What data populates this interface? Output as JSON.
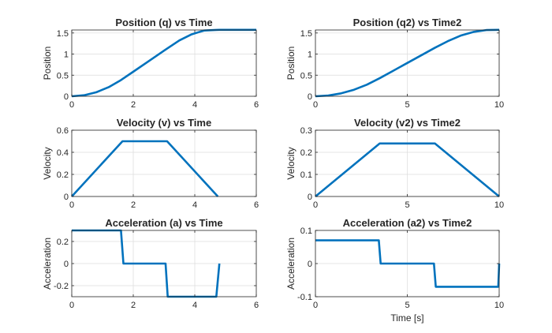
{
  "chart_data": [
    {
      "type": "line",
      "title": "Position (q) vs Time",
      "xlabel": "",
      "ylabel": "Position",
      "xlim": [
        0,
        6
      ],
      "ylim": [
        0,
        1.571
      ],
      "xticks": [
        0,
        2,
        4,
        6
      ],
      "yticks": [
        0,
        0.5,
        1,
        1.5
      ],
      "xtick_labels": [
        "0",
        "2",
        "4",
        "6"
      ],
      "ytick_labels": [
        "0",
        "0.5",
        "1",
        "1.5"
      ],
      "grid": true,
      "color": "#0072bd",
      "series": [
        {
          "x": [
            0,
            0.4,
            0.8,
            1.2,
            1.6,
            2.0,
            2.5,
            3.0,
            3.1,
            3.5,
            3.9,
            4.3,
            4.7,
            4.8,
            6.0
          ],
          "y": [
            0,
            0.024,
            0.096,
            0.216,
            0.384,
            0.582,
            0.832,
            1.082,
            1.131,
            1.325,
            1.469,
            1.558,
            1.573,
            1.575,
            1.575
          ]
        }
      ]
    },
    {
      "type": "line",
      "title": "Position (q2) vs Time2",
      "xlabel": "",
      "ylabel": "Position",
      "xlim": [
        0,
        10
      ],
      "ylim": [
        0,
        1.571
      ],
      "xticks": [
        0,
        5,
        10
      ],
      "yticks": [
        0,
        0.5,
        1,
        1.5
      ],
      "xtick_labels": [
        "0",
        "5",
        "10"
      ],
      "ytick_labels": [
        "0",
        "0.5",
        "1",
        "1.5"
      ],
      "grid": true,
      "color": "#0072bd",
      "series": [
        {
          "x": [
            0,
            0.7,
            1.4,
            2.1,
            2.8,
            3.5,
            4.2,
            5.0,
            5.8,
            6.5,
            7.2,
            7.9,
            8.6,
            9.3,
            10.0
          ],
          "y": [
            0,
            0.017,
            0.069,
            0.155,
            0.275,
            0.429,
            0.597,
            0.789,
            0.981,
            1.149,
            1.305,
            1.437,
            1.525,
            1.569,
            1.575
          ]
        }
      ]
    },
    {
      "type": "line",
      "title": "Velocity (v) vs Time",
      "xlabel": "",
      "ylabel": "Velocity",
      "xlim": [
        0,
        6
      ],
      "ylim": [
        0,
        0.6
      ],
      "xticks": [
        0,
        2,
        4,
        6
      ],
      "yticks": [
        0,
        0.2,
        0.4,
        0.6
      ],
      "xtick_labels": [
        "0",
        "2",
        "4",
        "6"
      ],
      "ytick_labels": [
        "0",
        "0.2",
        "0.4",
        "0.6"
      ],
      "grid": true,
      "color": "#0072bd",
      "series": [
        {
          "x": [
            0,
            1.65,
            3.1,
            4.75
          ],
          "y": [
            0,
            0.5,
            0.5,
            0
          ]
        }
      ]
    },
    {
      "type": "line",
      "title": "Velocity (v2) vs Time2",
      "xlabel": "",
      "ylabel": "Velocity",
      "xlim": [
        0,
        10
      ],
      "ylim": [
        0,
        0.3
      ],
      "xticks": [
        0,
        5,
        10
      ],
      "yticks": [
        0,
        0.1,
        0.2,
        0.3
      ],
      "xtick_labels": [
        "0",
        "5",
        "10"
      ],
      "ytick_labels": [
        "0",
        "0.1",
        "0.2",
        "0.3"
      ],
      "grid": true,
      "color": "#0072bd",
      "series": [
        {
          "x": [
            0,
            3.5,
            6.5,
            10
          ],
          "y": [
            0,
            0.24,
            0.24,
            0
          ]
        }
      ]
    },
    {
      "type": "line",
      "title": "Acceleration (a) vs Time",
      "xlabel": "",
      "ylabel": "Acceleration",
      "xlim": [
        0,
        6
      ],
      "ylim": [
        -0.3,
        0.3
      ],
      "xticks": [
        0,
        2,
        4,
        6
      ],
      "yticks": [
        -0.2,
        0,
        0.2
      ],
      "xtick_labels": [
        "0",
        "2",
        "4",
        "6"
      ],
      "ytick_labels": [
        "-0.2",
        "0",
        "0.2"
      ],
      "grid": true,
      "color": "#0072bd",
      "series": [
        {
          "x": [
            0,
            1.6,
            1.68,
            3.05,
            3.12,
            4.7,
            4.8
          ],
          "y": [
            0.3,
            0.3,
            0,
            0,
            -0.3,
            -0.3,
            0
          ]
        }
      ]
    },
    {
      "type": "line",
      "title": "Acceleration (a2) vs Time2",
      "xlabel": "Time [s]",
      "ylabel": "Acceleration",
      "xlim": [
        0,
        10
      ],
      "ylim": [
        -0.1,
        0.1
      ],
      "xticks": [
        0,
        5,
        10
      ],
      "yticks": [
        -0.1,
        0,
        0.1
      ],
      "xtick_labels": [
        "0",
        "5",
        "10"
      ],
      "ytick_labels": [
        "-0.1",
        "0",
        "0.1"
      ],
      "grid": true,
      "color": "#0072bd",
      "series": [
        {
          "x": [
            0,
            3.45,
            3.55,
            6.45,
            6.55,
            9.95,
            10
          ],
          "y": [
            0.07,
            0.07,
            0,
            0,
            -0.07,
            -0.07,
            0
          ]
        }
      ]
    }
  ]
}
